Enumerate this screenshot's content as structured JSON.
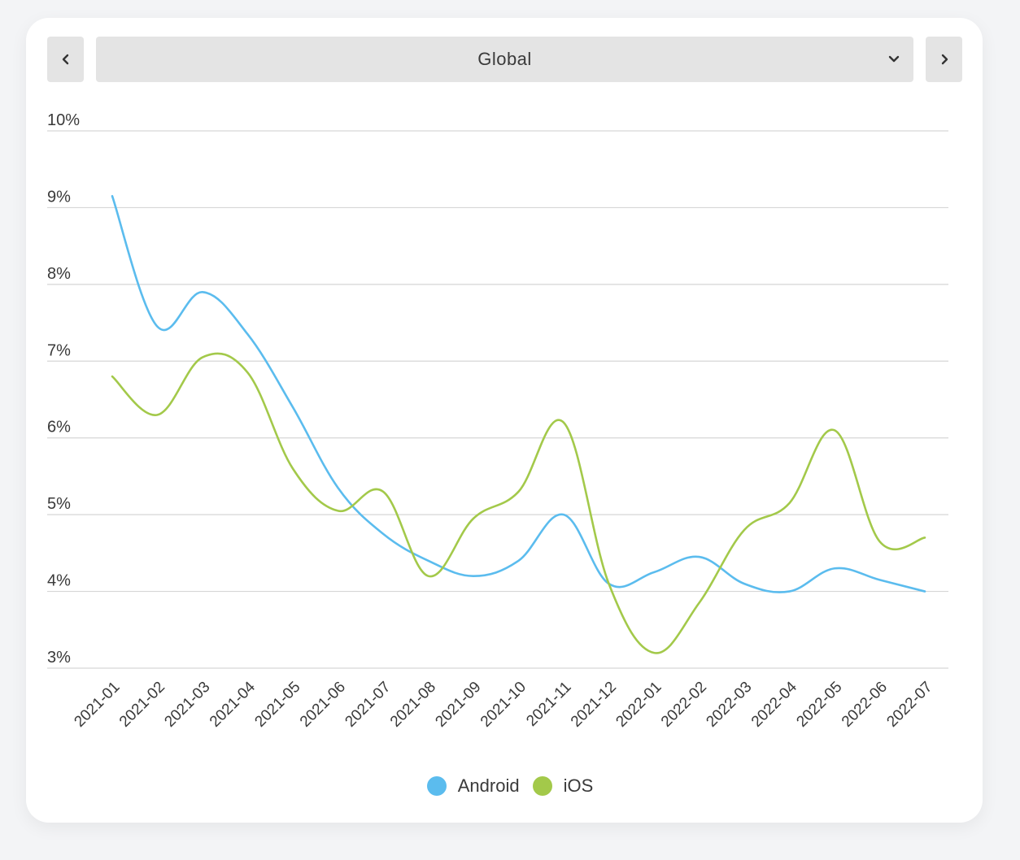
{
  "header": {
    "region_label": "Global"
  },
  "icons": {
    "prev": "chevron-left-icon",
    "next": "chevron-right-icon",
    "dropdown": "chevron-down-icon"
  },
  "chart_data": {
    "type": "line",
    "categories": [
      "2021-01",
      "2021-02",
      "2021-03",
      "2021-04",
      "2021-05",
      "2021-06",
      "2021-07",
      "2021-08",
      "2021-09",
      "2021-10",
      "2021-11",
      "2021-12",
      "2022-01",
      "2022-02",
      "2022-03",
      "2022-04",
      "2022-05",
      "2022-06",
      "2022-07"
    ],
    "y_ticks": [
      "10%",
      "9%",
      "8%",
      "7%",
      "6%",
      "5%",
      "4%",
      "3%"
    ],
    "ylim": [
      3,
      10
    ],
    "grid": true,
    "legend_position": "bottom",
    "series": [
      {
        "name": "Android",
        "color": "#5bbcee",
        "values": [
          9.15,
          7.45,
          7.9,
          7.35,
          6.4,
          5.35,
          4.75,
          4.4,
          4.2,
          4.4,
          5.0,
          4.1,
          4.25,
          4.45,
          4.1,
          4.0,
          4.3,
          4.15,
          4.0
        ]
      },
      {
        "name": "iOS",
        "color": "#a3c94a",
        "values": [
          6.8,
          6.3,
          7.05,
          6.85,
          5.6,
          5.05,
          5.3,
          4.2,
          4.95,
          5.3,
          6.2,
          4.1,
          3.2,
          3.85,
          4.8,
          5.15,
          6.1,
          4.65,
          4.7
        ]
      }
    ]
  }
}
